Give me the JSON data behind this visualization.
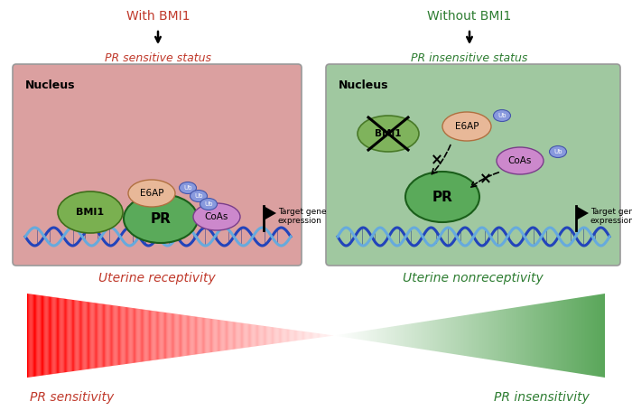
{
  "bg_color": "#ffffff",
  "left_box_color": "#dba0a0",
  "right_box_color": "#a0c8a0",
  "left_title": "With BMI1",
  "right_title": "Without BMI1",
  "left_status": "PR sensitive status",
  "right_status": "PR insensitive status",
  "nucleus_label": "Nucleus",
  "left_bottom_label": "Uterine receptivity",
  "right_bottom_label": "Uterine nonreceptivity",
  "pr_sensitivity_label": "PR sensitivity",
  "pr_insensitivity_label": "PR insensitivity",
  "red_color": "#c0392b",
  "green_color": "#2e7d32",
  "bmi1_color": "#7ab050",
  "e6ap_color": "#e8b898",
  "pr_color": "#5aaa5a",
  "coas_color": "#cc88cc",
  "ub_color": "#8899dd",
  "dna_dark": "#2244bb",
  "dna_light": "#66aadd"
}
